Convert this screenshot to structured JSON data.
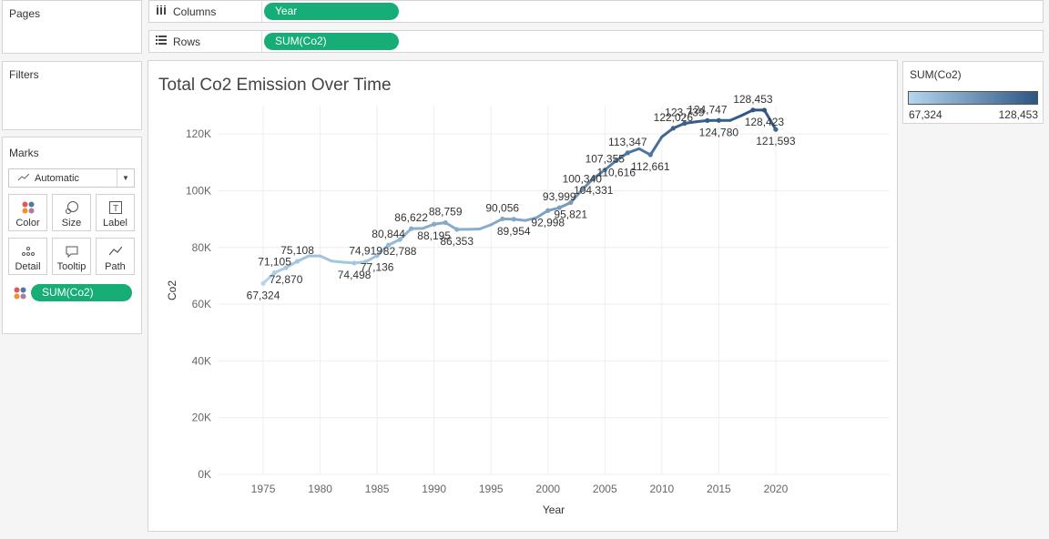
{
  "cards": {
    "pages_title": "Pages",
    "filters_title": "Filters",
    "marks_title": "Marks",
    "marks_type": "Automatic",
    "mark_buttons": [
      "Color",
      "Size",
      "Label",
      "Detail",
      "Tooltip",
      "Path"
    ],
    "marks_pill": "SUM(Co2)"
  },
  "shelves": {
    "columns_label": "Columns",
    "columns_pill": "Year",
    "rows_label": "Rows",
    "rows_pill": "SUM(Co2)"
  },
  "legend": {
    "title": "SUM(Co2)",
    "min_label": "67,324",
    "max_label": "128,453",
    "color_low": "#b4d6ee",
    "color_high": "#2d5683"
  },
  "chart_data": {
    "type": "line",
    "title": "Total Co2 Emission Over Time",
    "xlabel": "Year",
    "ylabel": "Co2",
    "xlim": [
      1971,
      2030
    ],
    "ylim": [
      0,
      130000
    ],
    "x_ticks": [
      "1975",
      "1980",
      "1985",
      "1990",
      "1995",
      "2000",
      "2005",
      "2010",
      "2015",
      "2020"
    ],
    "y_ticks": [
      "0K",
      "20K",
      "40K",
      "60K",
      "80K",
      "100K",
      "120K"
    ],
    "grid": true,
    "color_by_value": true,
    "points": [
      {
        "year": 1975,
        "value": 67324
      },
      {
        "year": 1976,
        "value": 71105
      },
      {
        "year": 1977,
        "value": 72870
      },
      {
        "year": 1978,
        "value": 75108
      },
      {
        "year": 1979,
        "value": 77000
      },
      {
        "year": 1980,
        "value": 77000
      },
      {
        "year": 1981,
        "value": 75200
      },
      {
        "year": 1982,
        "value": 74800
      },
      {
        "year": 1983,
        "value": 74498
      },
      {
        "year": 1984,
        "value": 74919
      },
      {
        "year": 1985,
        "value": 77136
      },
      {
        "year": 1986,
        "value": 80844
      },
      {
        "year": 1987,
        "value": 82788
      },
      {
        "year": 1988,
        "value": 86622
      },
      {
        "year": 1989,
        "value": 86700
      },
      {
        "year": 1990,
        "value": 88195
      },
      {
        "year": 1991,
        "value": 88759
      },
      {
        "year": 1992,
        "value": 86353
      },
      {
        "year": 1993,
        "value": 86400
      },
      {
        "year": 1994,
        "value": 86500
      },
      {
        "year": 1995,
        "value": 88000
      },
      {
        "year": 1996,
        "value": 90056
      },
      {
        "year": 1997,
        "value": 89954
      },
      {
        "year": 1998,
        "value": 89500
      },
      {
        "year": 1999,
        "value": 90500
      },
      {
        "year": 2000,
        "value": 92998
      },
      {
        "year": 2001,
        "value": 93999
      },
      {
        "year": 2002,
        "value": 95821
      },
      {
        "year": 2003,
        "value": 100340
      },
      {
        "year": 2004,
        "value": 104331
      },
      {
        "year": 2005,
        "value": 107355
      },
      {
        "year": 2006,
        "value": 110616
      },
      {
        "year": 2007,
        "value": 113347
      },
      {
        "year": 2008,
        "value": 114800
      },
      {
        "year": 2009,
        "value": 112661
      },
      {
        "year": 2010,
        "value": 119000
      },
      {
        "year": 2011,
        "value": 122026
      },
      {
        "year": 2012,
        "value": 123739
      },
      {
        "year": 2013,
        "value": 124300
      },
      {
        "year": 2014,
        "value": 124747
      },
      {
        "year": 2015,
        "value": 124780
      },
      {
        "year": 2016,
        "value": 124800
      },
      {
        "year": 2017,
        "value": 126500
      },
      {
        "year": 2018,
        "value": 128453
      },
      {
        "year": 2019,
        "value": 128423
      },
      {
        "year": 2020,
        "value": 121593
      }
    ],
    "data_labels": [
      {
        "year": 1975,
        "text": "67,324",
        "pos": "below"
      },
      {
        "year": 1976,
        "text": "71,105",
        "pos": "above"
      },
      {
        "year": 1977,
        "text": "72,870",
        "pos": "below"
      },
      {
        "year": 1978,
        "text": "75,108",
        "pos": "above"
      },
      {
        "year": 1983,
        "text": "74,498",
        "pos": "below"
      },
      {
        "year": 1984,
        "text": "74,919",
        "pos": "above"
      },
      {
        "year": 1985,
        "text": "77,136",
        "pos": "below"
      },
      {
        "year": 1986,
        "text": "80,844",
        "pos": "above"
      },
      {
        "year": 1987,
        "text": "82,788",
        "pos": "below"
      },
      {
        "year": 1988,
        "text": "86,622",
        "pos": "above"
      },
      {
        "year": 1990,
        "text": "88,195",
        "pos": "below"
      },
      {
        "year": 1991,
        "text": "88,759",
        "pos": "above"
      },
      {
        "year": 1992,
        "text": "86,353",
        "pos": "below"
      },
      {
        "year": 1996,
        "text": "90,056",
        "pos": "above"
      },
      {
        "year": 1997,
        "text": "89,954",
        "pos": "below"
      },
      {
        "year": 2000,
        "text": "92,998",
        "pos": "below"
      },
      {
        "year": 2001,
        "text": "93,999",
        "pos": "above"
      },
      {
        "year": 2002,
        "text": "95,821",
        "pos": "below"
      },
      {
        "year": 2003,
        "text": "100,340",
        "pos": "above"
      },
      {
        "year": 2004,
        "text": "104,331",
        "pos": "below"
      },
      {
        "year": 2005,
        "text": "107,355",
        "pos": "above"
      },
      {
        "year": 2006,
        "text": "110,616",
        "pos": "below"
      },
      {
        "year": 2007,
        "text": "113,347",
        "pos": "above"
      },
      {
        "year": 2009,
        "text": "112,661",
        "pos": "below"
      },
      {
        "year": 2011,
        "text": "122,026",
        "pos": "above"
      },
      {
        "year": 2012,
        "text": "123,739",
        "pos": "above"
      },
      {
        "year": 2014,
        "text": "124,747",
        "pos": "above"
      },
      {
        "year": 2015,
        "text": "124,780",
        "pos": "below"
      },
      {
        "year": 2018,
        "text": "128,453",
        "pos": "above"
      },
      {
        "year": 2019,
        "text": "128,423",
        "pos": "below"
      },
      {
        "year": 2020,
        "text": "121,593",
        "pos": "below"
      }
    ]
  }
}
